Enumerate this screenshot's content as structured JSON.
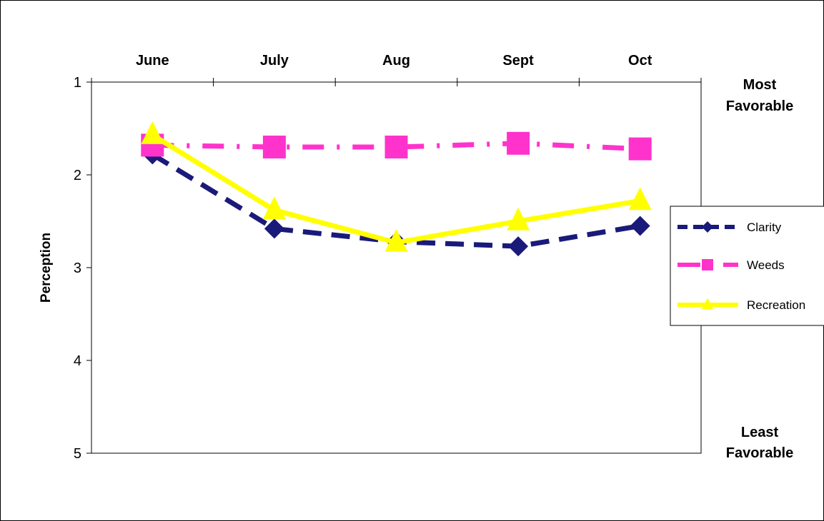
{
  "chart_data": {
    "type": "line",
    "categories": [
      "June",
      "July",
      "Aug",
      "Sept",
      "Oct"
    ],
    "ylabel": "Perception",
    "ylim": [
      1,
      5
    ],
    "y_ticks": [
      "1",
      "2",
      "3",
      "4",
      "5"
    ],
    "y_reversed": true,
    "x_axis_position": "top",
    "grid": false,
    "legend_position": "right",
    "annotations": {
      "top": [
        "Most",
        "Favorable"
      ],
      "bottom": [
        "Least",
        "Favorable"
      ]
    },
    "series": [
      {
        "name": "Clarity",
        "values": [
          1.78,
          2.58,
          2.72,
          2.77,
          2.55
        ],
        "color": "#1a1a7a",
        "marker": "diamond",
        "dash": "long-dash"
      },
      {
        "name": "Weeds",
        "values": [
          1.68,
          1.7,
          1.7,
          1.66,
          1.72
        ],
        "color": "#ff33cc",
        "marker": "square",
        "dash": "dash-dot"
      },
      {
        "name": "Recreation",
        "values": [
          1.57,
          2.38,
          2.73,
          2.5,
          2.28
        ],
        "color": "#ffff00",
        "marker": "triangle",
        "dash": "solid"
      }
    ]
  }
}
